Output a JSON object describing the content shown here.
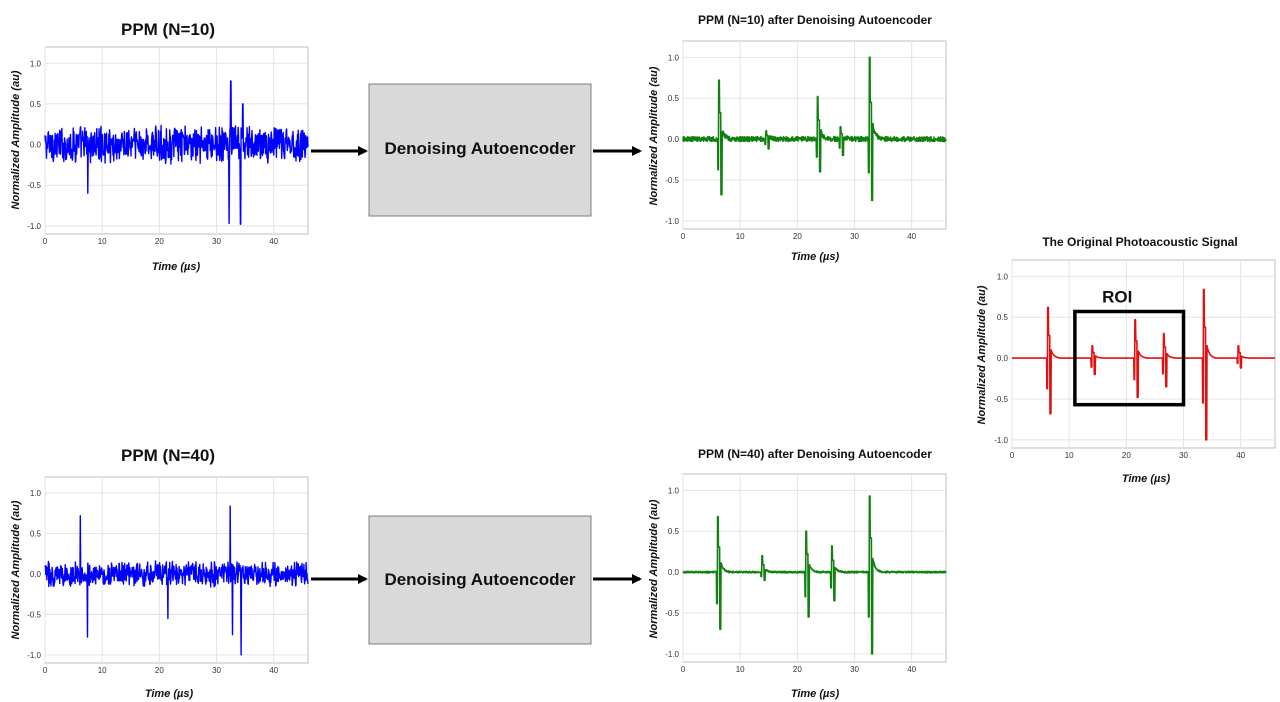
{
  "flow": [
    {
      "from": "ppm_n10",
      "via": "autoencoder_top",
      "to": "denoised_n10"
    },
    {
      "from": "ppm_n40",
      "via": "autoencoder_bottom",
      "to": "denoised_n40"
    }
  ],
  "boxes": {
    "autoencoder_top": {
      "label": "Denoising Autoencoder",
      "fill": "#d9d9d9"
    },
    "autoencoder_bottom": {
      "label": "Denoising Autoencoder",
      "fill": "#d9d9d9"
    }
  },
  "roi": {
    "label": "ROI",
    "x_range": [
      11,
      30
    ],
    "y_range": [
      -0.57,
      0.57
    ]
  },
  "chart_data": [
    {
      "id": "ppm_n10",
      "type": "line",
      "title": "PPM (N=10)",
      "xlabel": "Time (µs)",
      "ylabel": "Normalized Amplitude (au)",
      "color": "#0000ff",
      "style": "noisy",
      "xlim": [
        0,
        46
      ],
      "ylim": [
        -1.1,
        1.2
      ],
      "xticks": [
        0,
        10,
        20,
        30,
        40
      ],
      "yticks": [
        -1.0,
        -0.5,
        0.0,
        0.5,
        1.0
      ],
      "noise_amplitude": 0.18,
      "spikes": [
        {
          "x": 7.5,
          "y": -0.6
        },
        {
          "x": 32.2,
          "y": -0.97
        },
        {
          "x": 32.5,
          "y": 0.78
        },
        {
          "x": 34.2,
          "y": -0.98
        },
        {
          "x": 34.6,
          "y": 0.5
        }
      ]
    },
    {
      "id": "denoised_n10",
      "type": "line",
      "title": "PPM (N=10) after Denoising Autoencoder",
      "xlabel": "Time (µs)",
      "ylabel": "Normalized Amplitude (au)",
      "color": "#108010",
      "style": "pulse",
      "xlim": [
        0,
        46
      ],
      "ylim": [
        -1.1,
        1.2
      ],
      "xticks": [
        0,
        10,
        20,
        30,
        40
      ],
      "yticks": [
        -1.0,
        -0.5,
        0.0,
        0.5,
        1.0
      ],
      "baseline_noise": 0.03,
      "pulses": [
        {
          "x": 6.2,
          "peak": 0.72,
          "trough": -0.68
        },
        {
          "x": 14.5,
          "peak": 0.1,
          "trough": -0.12
        },
        {
          "x": 23.5,
          "peak": 0.52,
          "trough": -0.4
        },
        {
          "x": 27.5,
          "peak": 0.15,
          "trough": -0.2
        },
        {
          "x": 32.6,
          "peak": 1.0,
          "trough": -0.75
        }
      ]
    },
    {
      "id": "ppm_n40",
      "type": "line",
      "title": "PPM (N=40)",
      "xlabel": "Time (µs)",
      "ylabel": "Normalized Amplitude (au)",
      "color": "#0000ff",
      "style": "noisy",
      "xlim": [
        0,
        46
      ],
      "ylim": [
        -1.1,
        1.2
      ],
      "xticks": [
        0,
        10,
        20,
        30,
        40
      ],
      "yticks": [
        -1.0,
        -0.5,
        0.0,
        0.5,
        1.0
      ],
      "noise_amplitude": 0.12,
      "spikes": [
        {
          "x": 6.2,
          "y": 0.72
        },
        {
          "x": 7.4,
          "y": -0.78
        },
        {
          "x": 21.5,
          "y": -0.55
        },
        {
          "x": 32.4,
          "y": 0.84
        },
        {
          "x": 32.8,
          "y": -0.75
        },
        {
          "x": 34.3,
          "y": -1.0
        }
      ]
    },
    {
      "id": "denoised_n40",
      "type": "line",
      "title": "PPM (N=40) after Denoising Autoencoder",
      "xlabel": "Time (µs)",
      "ylabel": "Normalized Amplitude (au)",
      "color": "#108010",
      "style": "pulse",
      "xlim": [
        0,
        46
      ],
      "ylim": [
        -1.1,
        1.2
      ],
      "xticks": [
        0,
        10,
        20,
        30,
        40
      ],
      "yticks": [
        -1.0,
        -0.5,
        0.0,
        0.5,
        1.0
      ],
      "baseline_noise": 0.01,
      "pulses": [
        {
          "x": 6.0,
          "peak": 0.68,
          "trough": -0.7
        },
        {
          "x": 13.8,
          "peak": 0.2,
          "trough": -0.1
        },
        {
          "x": 21.5,
          "peak": 0.5,
          "trough": -0.55
        },
        {
          "x": 26.0,
          "peak": 0.32,
          "trough": -0.35
        },
        {
          "x": 32.6,
          "peak": 0.93,
          "trough": -1.0
        }
      ]
    },
    {
      "id": "original",
      "type": "line",
      "title": "The Original Photoacoustic Signal",
      "xlabel": "Time (µs)",
      "ylabel": "Normalized Amplitude (au)",
      "color": "#e01010",
      "style": "pulse",
      "xlim": [
        0,
        46
      ],
      "ylim": [
        -1.1,
        1.2
      ],
      "xticks": [
        0,
        10,
        20,
        30,
        40
      ],
      "yticks": [
        -1.0,
        -0.5,
        0.0,
        0.5,
        1.0
      ],
      "baseline_noise": 0.0,
      "pulses": [
        {
          "x": 6.2,
          "peak": 0.62,
          "trough": -0.68
        },
        {
          "x": 14.0,
          "peak": 0.15,
          "trough": -0.2
        },
        {
          "x": 21.5,
          "peak": 0.47,
          "trough": -0.48
        },
        {
          "x": 26.5,
          "peak": 0.3,
          "trough": -0.35
        },
        {
          "x": 33.5,
          "peak": 0.84,
          "trough": -1.0
        },
        {
          "x": 39.5,
          "peak": 0.15,
          "trough": -0.12
        }
      ]
    }
  ]
}
